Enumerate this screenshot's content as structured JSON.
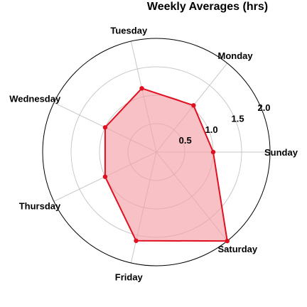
{
  "chart_data": {
    "type": "radar",
    "title": "Weekly Averages (hrs)",
    "categories": [
      "Sunday",
      "Monday",
      "Tuesday",
      "Wednesday",
      "Thursday",
      "Friday",
      "Saturday"
    ],
    "series": [
      {
        "values": [
          1.0,
          1.05,
          1.15,
          1.0,
          1.0,
          1.6,
          2.0
        ],
        "line_color": "#e01020",
        "fill_color": "#f4a0a8"
      }
    ],
    "rlim": [
      0,
      2.0
    ],
    "radial_ticks": [
      0.5,
      1.0,
      1.5,
      2.0
    ],
    "radial_tick_labels": [
      "0.5",
      "1.0",
      "1.5",
      "2.0"
    ],
    "grid": true,
    "grid_color": "#c8c8c8",
    "outer_circle_color": "#000000"
  }
}
